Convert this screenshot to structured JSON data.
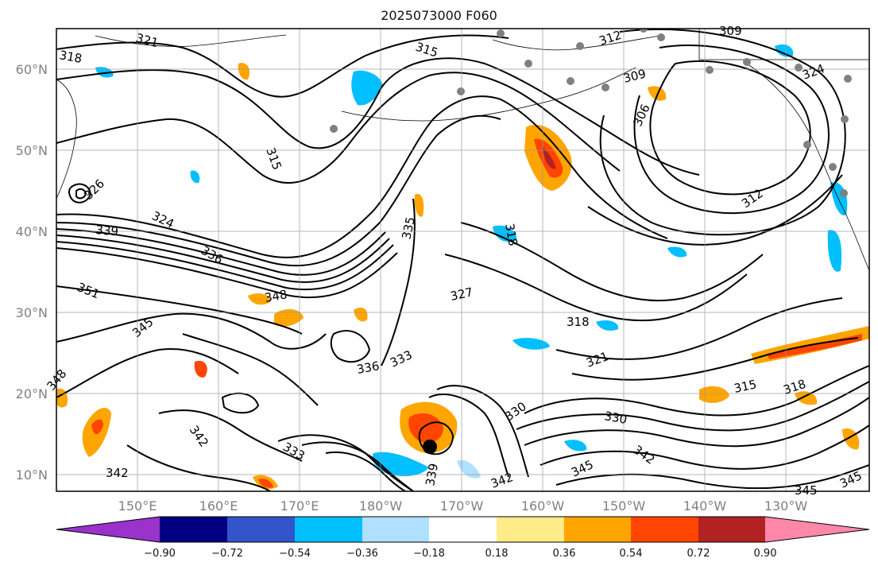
{
  "title": "2025073000 F060",
  "map": {
    "lat_labels": [
      "60°N",
      "50°N",
      "40°N",
      "30°N",
      "20°N",
      "10°N"
    ],
    "lon_labels": [
      "150°E",
      "160°E",
      "170°E",
      "180°W",
      "170°W",
      "160°W",
      "150°W",
      "140°W",
      "130°W"
    ],
    "contour_labels": [
      "321",
      "318",
      "315",
      "312",
      "309",
      "309",
      "324",
      "315",
      "306",
      "326",
      "324",
      "339",
      "336",
      "312",
      "335",
      "318",
      "351",
      "348",
      "327",
      "318",
      "321",
      "345",
      "336",
      "333",
      "330",
      "330",
      "315",
      "318",
      "348",
      "342",
      "333",
      "342",
      "339",
      "345",
      "342",
      "345",
      "345",
      "342"
    ]
  },
  "colorbar": {
    "ticks": [
      "−0.90",
      "−0.72",
      "−0.54",
      "−0.36",
      "−0.18",
      "0.18",
      "0.36",
      "0.54",
      "0.72",
      "0.90"
    ],
    "colors": [
      "#9933cc",
      "#000080",
      "#3355cc",
      "#00bfff",
      "#b0e0ff",
      "#ffffff",
      "#ffeb8a",
      "#ffa500",
      "#ff4500",
      "#b22222",
      "#ff88aa"
    ]
  }
}
